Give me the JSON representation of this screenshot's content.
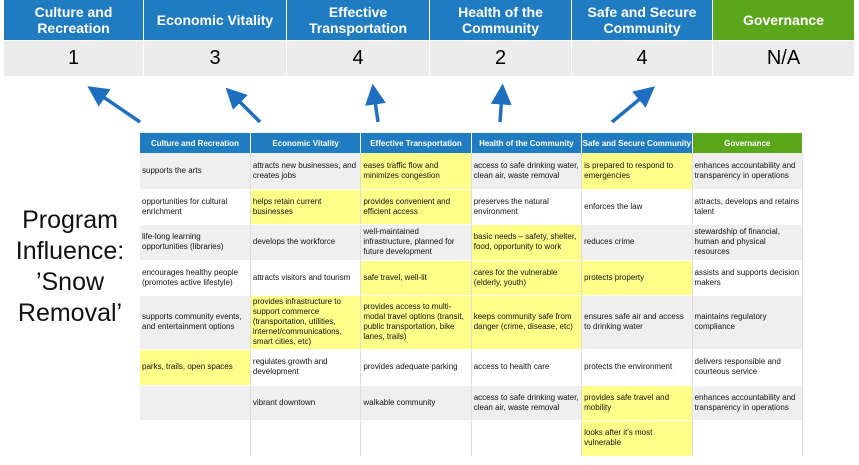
{
  "scores": {
    "headers": [
      "Culture and Recreation",
      "Economic Vitality",
      "Effective Transportation",
      "Health of the Community",
      "Safe and Secure Community",
      "Governance"
    ],
    "values": [
      "1",
      "3",
      "4",
      "2",
      "4",
      "N/A"
    ]
  },
  "side_label": [
    "Program",
    "Influence:",
    "’Snow",
    "Removal’"
  ],
  "table": {
    "headers": [
      "Culture and Recreation",
      "Economic Vitality",
      "Effective Transportation",
      "Health of the Community",
      "Safe and Secure Community",
      "Governance"
    ],
    "rows": [
      [
        {
          "t": "supports the arts",
          "h": false
        },
        {
          "t": "attracts new businesses, and creates jobs",
          "h": false
        },
        {
          "t": "eases traffic flow and minimizes congestion",
          "h": true
        },
        {
          "t": "access to safe drinking water, clean air, waste removal",
          "h": false
        },
        {
          "t": "is prepared to respond to emergencies",
          "h": true
        },
        {
          "t": "enhances accountability and transparency in operations",
          "h": false
        }
      ],
      [
        {
          "t": "opportunities for cultural enrichment",
          "h": false
        },
        {
          "t": "helps retain current businesses",
          "h": true
        },
        {
          "t": "provides convenient and efficient access",
          "h": true
        },
        {
          "t": "preserves the natural environment",
          "h": false
        },
        {
          "t": "enforces the law",
          "h": false
        },
        {
          "t": "attracts, develops and retains talent",
          "h": false
        }
      ],
      [
        {
          "t": "life-long learning opportunities (libraries)",
          "h": false
        },
        {
          "t": "develops the workforce",
          "h": false
        },
        {
          "t": "well-maintained infrastructure, planned for future development",
          "h": false
        },
        {
          "t": "basic needs – safety, shelter, food, opportunity to work",
          "h": true
        },
        {
          "t": "reduces crime",
          "h": false
        },
        {
          "t": "stewardship of financial, human and physical resources",
          "h": false
        }
      ],
      [
        {
          "t": "encourages healthy people (promotes active lifestyle)",
          "h": false
        },
        {
          "t": "attracts visitors and tourism",
          "h": false
        },
        {
          "t": "safe travel, well-lit",
          "h": true
        },
        {
          "t": "cares for the vulnerable (elderly, youth)",
          "h": true
        },
        {
          "t": "protects property",
          "h": true
        },
        {
          "t": "assists and supports decision makers",
          "h": false
        }
      ],
      [
        {
          "t": "supports community events, and entertainment options",
          "h": false
        },
        {
          "t": "provides infrastructure to support commerce (transportation, utilities, internet/communications, smart cities, etc)",
          "h": true
        },
        {
          "t": "provides access to multi-modal travel options (transit, public transportation, bike lanes, trails)",
          "h": true
        },
        {
          "t": "keeps community safe from danger (crime, disease, etc)",
          "h": true
        },
        {
          "t": "ensures safe air and access to drinking water",
          "h": false
        },
        {
          "t": "maintains regulatory compliance",
          "h": false
        }
      ],
      [
        {
          "t": "parks, trails, open spaces",
          "h": true
        },
        {
          "t": "regulates growth and development",
          "h": false
        },
        {
          "t": "provides adequate parking",
          "h": false
        },
        {
          "t": "access to health care",
          "h": false
        },
        {
          "t": "protects the environment",
          "h": false
        },
        {
          "t": "delivers responsible and courteous service",
          "h": false
        }
      ],
      [
        {
          "t": "",
          "h": false
        },
        {
          "t": "vibrant downtown",
          "h": false
        },
        {
          "t": "walkable community",
          "h": false
        },
        {
          "t": "access to safe drinking water, clean air, waste removal",
          "h": false
        },
        {
          "t": "provides safe travel and mobility",
          "h": true
        },
        {
          "t": "enhances accountability and transparency in operations",
          "h": false
        }
      ],
      [
        {
          "t": "",
          "h": false
        },
        {
          "t": "",
          "h": false
        },
        {
          "t": "",
          "h": false
        },
        {
          "t": "",
          "h": false
        },
        {
          "t": "looks after it's most vulnerable",
          "h": true
        },
        {
          "t": "",
          "h": false
        }
      ]
    ]
  },
  "colors": {
    "blue": "#1f7cc1",
    "green": "#5ba71b",
    "highlight": "#ffff8a",
    "arrow": "#1f6fc0"
  }
}
